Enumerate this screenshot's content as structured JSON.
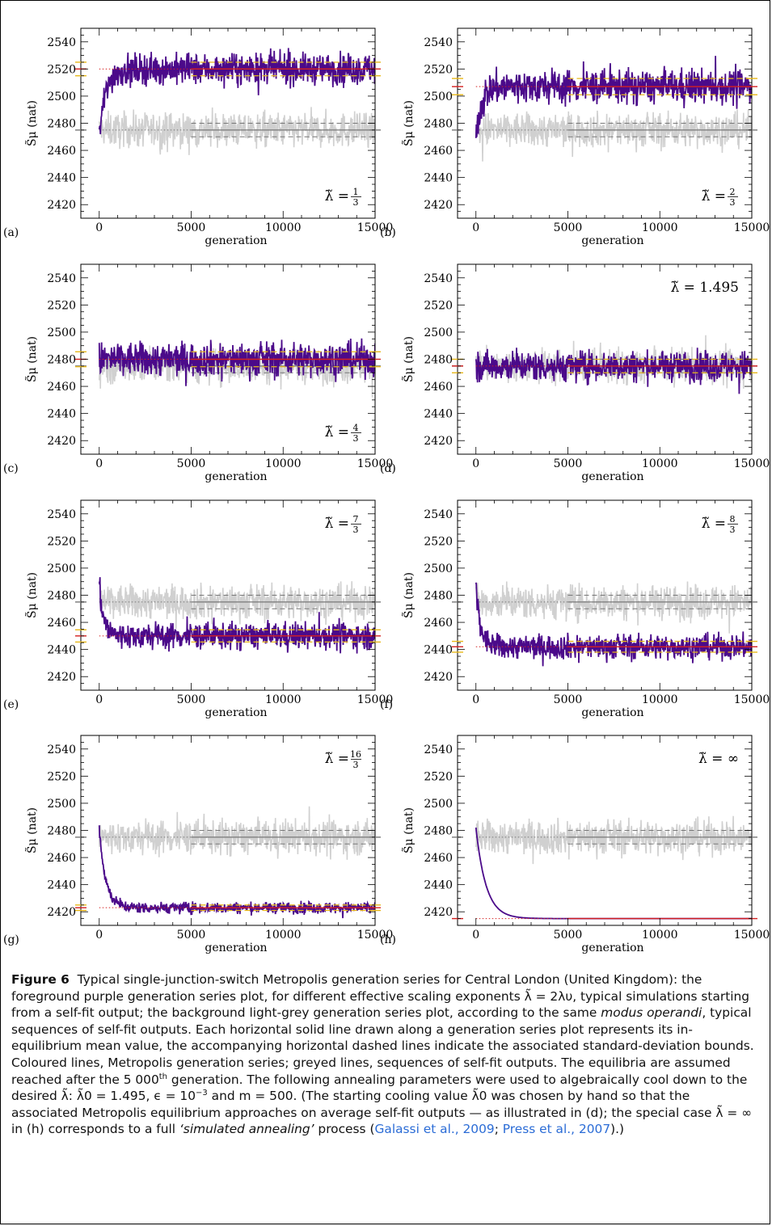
{
  "colors": {
    "metropolis": "#4b0a8a",
    "mean_line": "#d42020",
    "std_band": "#e8b81a",
    "self_fit": "#d0d0d0",
    "self_fit_line": "#777777",
    "reference": "#2b6cd6"
  },
  "chart_data": [
    {
      "panel": "(a)",
      "type": "line",
      "xlabel": "generation",
      "ylabel": "S̃μ (nat)",
      "xlim": [
        -1000,
        15000
      ],
      "ylim": [
        2410,
        2550
      ],
      "xticks": [
        0,
        5000,
        10000,
        15000
      ],
      "yticks": [
        2420,
        2440,
        2460,
        2480,
        2500,
        2520,
        2540
      ],
      "annotation": "λ̃ = 1/3",
      "annotation_position": "bottom-right",
      "series": [
        {
          "role": "metropolis",
          "start": 2470,
          "mean": 2520,
          "std": 5,
          "noise": 8,
          "decay": 350
        },
        {
          "role": "self_fit",
          "start": 2475,
          "mean": 2475,
          "std": 5,
          "noise": 9,
          "decay": 0
        }
      ]
    },
    {
      "panel": "(b)",
      "type": "line",
      "xlabel": "generation",
      "ylabel": "S̃μ (nat)",
      "xlim": [
        -1000,
        15000
      ],
      "ylim": [
        2410,
        2550
      ],
      "xticks": [
        0,
        5000,
        10000,
        15000
      ],
      "yticks": [
        2420,
        2440,
        2460,
        2480,
        2500,
        2520,
        2540
      ],
      "annotation": "λ̃ = 2/3",
      "annotation_position": "bottom-right",
      "series": [
        {
          "role": "metropolis",
          "start": 2470,
          "mean": 2507,
          "std": 6,
          "noise": 9,
          "decay": 300
        },
        {
          "role": "self_fit",
          "start": 2475,
          "mean": 2475,
          "std": 5,
          "noise": 9,
          "decay": 0
        }
      ]
    },
    {
      "panel": "(c)",
      "type": "line",
      "xlabel": "generation",
      "ylabel": "S̃μ (nat)",
      "xlim": [
        -1000,
        15000
      ],
      "ylim": [
        2410,
        2550
      ],
      "xticks": [
        0,
        5000,
        10000,
        15000
      ],
      "yticks": [
        2420,
        2440,
        2460,
        2480,
        2500,
        2520,
        2540
      ],
      "annotation": "λ̃ = 4/3",
      "annotation_position": "bottom-right",
      "series": [
        {
          "role": "metropolis",
          "start": 2480,
          "mean": 2480,
          "std": 5.5,
          "noise": 9,
          "decay": 0
        },
        {
          "role": "self_fit",
          "start": 2475,
          "mean": 2475,
          "std": 5,
          "noise": 9,
          "decay": 0
        }
      ]
    },
    {
      "panel": "(d)",
      "type": "line",
      "xlabel": "generation",
      "ylabel": "S̃μ (nat)",
      "xlim": [
        -1000,
        15000
      ],
      "ylim": [
        2410,
        2550
      ],
      "xticks": [
        0,
        5000,
        10000,
        15000
      ],
      "yticks": [
        2420,
        2440,
        2460,
        2480,
        2500,
        2520,
        2540
      ],
      "annotation": "λ̃ = 1.495",
      "annotation_position": "top-right",
      "series": [
        {
          "role": "metropolis",
          "start": 2475,
          "mean": 2475,
          "std": 5,
          "noise": 8,
          "decay": 0
        },
        {
          "role": "self_fit",
          "start": 2475,
          "mean": 2475,
          "std": 5,
          "noise": 9,
          "decay": 0
        }
      ]
    },
    {
      "panel": "(e)",
      "type": "line",
      "xlabel": "generation",
      "ylabel": "S̃μ (nat)",
      "xlim": [
        -1000,
        15000
      ],
      "ylim": [
        2410,
        2550
      ],
      "xticks": [
        0,
        5000,
        10000,
        15000
      ],
      "yticks": [
        2420,
        2440,
        2460,
        2480,
        2500,
        2520,
        2540
      ],
      "annotation": "λ̃ = 7/3",
      "annotation_position": "top-right",
      "series": [
        {
          "role": "metropolis",
          "start": 2487,
          "mean": 2450,
          "std": 4.5,
          "noise": 7,
          "decay": 250
        },
        {
          "role": "self_fit",
          "start": 2475,
          "mean": 2475,
          "std": 5,
          "noise": 9,
          "decay": 0
        }
      ]
    },
    {
      "panel": "(f)",
      "type": "line",
      "xlabel": "generation",
      "ylabel": "S̃μ (nat)",
      "xlim": [
        -1000,
        15000
      ],
      "ylim": [
        2410,
        2550
      ],
      "xticks": [
        0,
        5000,
        10000,
        15000
      ],
      "yticks": [
        2420,
        2440,
        2460,
        2480,
        2500,
        2520,
        2540
      ],
      "annotation": "λ̃ = 8/3",
      "annotation_position": "top-right",
      "series": [
        {
          "role": "metropolis",
          "start": 2485,
          "mean": 2442,
          "std": 4,
          "noise": 6.5,
          "decay": 250
        },
        {
          "role": "self_fit",
          "start": 2475,
          "mean": 2475,
          "std": 5,
          "noise": 9,
          "decay": 0
        }
      ]
    },
    {
      "panel": "(g)",
      "type": "line",
      "xlabel": "generation",
      "ylabel": "S̃μ (nat)",
      "xlim": [
        -1000,
        15000
      ],
      "ylim": [
        2410,
        2550
      ],
      "xticks": [
        0,
        5000,
        10000,
        15000
      ],
      "yticks": [
        2420,
        2440,
        2460,
        2480,
        2500,
        2520,
        2540
      ],
      "annotation": "λ̃ = 16/3",
      "annotation_position": "top-right",
      "series": [
        {
          "role": "metropolis",
          "start": 2482,
          "mean": 2423,
          "std": 2,
          "noise": 3,
          "decay": 350
        },
        {
          "role": "self_fit",
          "start": 2475,
          "mean": 2475,
          "std": 5,
          "noise": 9,
          "decay": 0
        }
      ]
    },
    {
      "panel": "(h)",
      "type": "line",
      "xlabel": "generation",
      "ylabel": "S̃μ (nat)",
      "xlim": [
        -1000,
        15000
      ],
      "ylim": [
        2410,
        2550
      ],
      "xticks": [
        0,
        5000,
        10000,
        15000
      ],
      "yticks": [
        2420,
        2440,
        2460,
        2480,
        2500,
        2520,
        2540
      ],
      "annotation": "λ̃ = ∞",
      "annotation_position": "top-right",
      "series": [
        {
          "role": "metropolis",
          "start": 2482,
          "mean": 2415,
          "std": 0,
          "noise": 0,
          "decay": 550
        },
        {
          "role": "self_fit",
          "start": 2475,
          "mean": 2475,
          "std": 5,
          "noise": 9,
          "decay": 0
        }
      ]
    }
  ],
  "caption": {
    "label": "Figure 6",
    "p1": "Typical single-junction-switch Metropolis generation series for Central London (United Kingdom): the foreground purple generation series plot, for different effective scaling exponents ",
    "lambda_def": "λ̃ = 2λυ",
    "p2": ", typical simulations starting from a self-fit output; the background light-grey generation series plot, according to the same ",
    "modus": "modus operandi",
    "p3": ", typical sequences of self-fit outputs. Each horizontal solid line drawn along a generation series plot represents its in-equilibrium mean value, the accompanying horizontal dashed lines indicate the associated standard-deviation bounds. Coloured lines, Metropolis generation series; greyed lines, sequences of self-fit outputs. The equilibria are assumed reached after the ",
    "gen": "5 000",
    "gen_sup": "th",
    "p4": " generation. The following annealing parameters were used to algebraically cool down to the desired ",
    "p5": "λ̃: λ̃0 = 1.495, ϵ = 10",
    "eps_exp": "−3",
    "p6": " and m = 500. (The starting cooling value λ̃0 was chosen by hand so that the associated Metropolis equilibrium approaches on average self-fit outputs — as illustrated in (d); the special case λ̃ = ∞ in (h) corresponds to a full ",
    "sa": "‘simulated annealing’",
    "p7": " process (",
    "ref1": "Galassi et al., 2009",
    "sep": "; ",
    "ref2": "Press et al., 2007",
    "p8": ").)"
  }
}
